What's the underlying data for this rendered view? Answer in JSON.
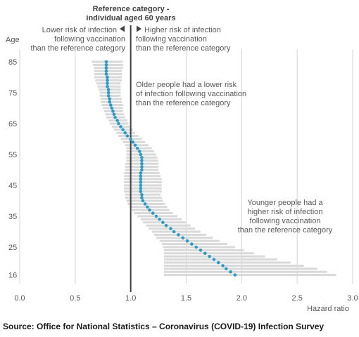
{
  "chart_data": {
    "type": "scatter",
    "ylabel": "Age",
    "xlabel": "Hazard ratio",
    "xlim": [
      0,
      3.0
    ],
    "x_ticks": [
      "0.0",
      "0.5",
      "1.0",
      "1.5",
      "2.0",
      "2.5",
      "3.0"
    ],
    "y_ticks": [
      "85",
      "75",
      "65",
      "55",
      "45",
      "35",
      "25",
      "16"
    ],
    "reference_line": {
      "x": 1.0,
      "label_line1": "Reference category -",
      "label_line2": "individual aged 60 years"
    },
    "left_label": [
      "Lower risk of infection",
      "following vaccination",
      "than the reference category"
    ],
    "right_label": [
      "Higher risk of infection",
      "following vaccination",
      "than the reference category"
    ],
    "annotations": [
      {
        "lines": [
          "Older people had a lower risk",
          "of infection following vaccination",
          "than the reference category"
        ]
      },
      {
        "lines": [
          "Younger people had a",
          "higher risk of infection",
          "following vaccination",
          "than the reference category"
        ]
      }
    ],
    "series": [
      {
        "color_point": "#2e9ac8",
        "color_ci": "#d9d9d9",
        "points": [
          {
            "age": 85,
            "hr": 0.78,
            "lo": 0.65,
            "hi": 0.93
          },
          {
            "age": 84,
            "hr": 0.78,
            "lo": 0.66,
            "hi": 0.93
          },
          {
            "age": 83,
            "hr": 0.78,
            "lo": 0.67,
            "hi": 0.93
          },
          {
            "age": 82,
            "hr": 0.78,
            "lo": 0.67,
            "hi": 0.92
          },
          {
            "age": 81,
            "hr": 0.78,
            "lo": 0.67,
            "hi": 0.92
          },
          {
            "age": 80,
            "hr": 0.79,
            "lo": 0.67,
            "hi": 0.92
          },
          {
            "age": 79,
            "hr": 0.79,
            "lo": 0.68,
            "hi": 0.92
          },
          {
            "age": 78,
            "hr": 0.79,
            "lo": 0.69,
            "hi": 0.91
          },
          {
            "age": 77,
            "hr": 0.79,
            "lo": 0.7,
            "hi": 0.91
          },
          {
            "age": 76,
            "hr": 0.8,
            "lo": 0.71,
            "hi": 0.91
          },
          {
            "age": 75,
            "hr": 0.8,
            "lo": 0.72,
            "hi": 0.91
          },
          {
            "age": 74,
            "hr": 0.8,
            "lo": 0.72,
            "hi": 0.91
          },
          {
            "age": 73,
            "hr": 0.81,
            "lo": 0.73,
            "hi": 0.92
          },
          {
            "age": 72,
            "hr": 0.81,
            "lo": 0.73,
            "hi": 0.92
          },
          {
            "age": 71,
            "hr": 0.82,
            "lo": 0.74,
            "hi": 0.93
          },
          {
            "age": 70,
            "hr": 0.83,
            "lo": 0.75,
            "hi": 0.93
          },
          {
            "age": 69,
            "hr": 0.84,
            "lo": 0.76,
            "hi": 0.93
          },
          {
            "age": 68,
            "hr": 0.85,
            "lo": 0.77,
            "hi": 0.94
          },
          {
            "age": 67,
            "hr": 0.86,
            "lo": 0.78,
            "hi": 0.95
          },
          {
            "age": 66,
            "hr": 0.88,
            "lo": 0.8,
            "hi": 0.97
          },
          {
            "age": 65,
            "hr": 0.89,
            "lo": 0.81,
            "hi": 0.98
          },
          {
            "age": 64,
            "hr": 0.91,
            "lo": 0.83,
            "hi": 1.0
          },
          {
            "age": 63,
            "hr": 0.93,
            "lo": 0.85,
            "hi": 1.02
          },
          {
            "age": 62,
            "hr": 0.95,
            "lo": 0.87,
            "hi": 1.04
          },
          {
            "age": 61,
            "hr": 0.97,
            "lo": 0.89,
            "hi": 1.07
          },
          {
            "age": 60,
            "hr": 1.0,
            "lo": 0.91,
            "hi": 1.1
          },
          {
            "age": 59,
            "hr": 1.02,
            "lo": 0.93,
            "hi": 1.13
          },
          {
            "age": 58,
            "hr": 1.04,
            "lo": 0.95,
            "hi": 1.16
          },
          {
            "age": 57,
            "hr": 1.06,
            "lo": 0.96,
            "hi": 1.19
          },
          {
            "age": 56,
            "hr": 1.08,
            "lo": 0.96,
            "hi": 1.21
          },
          {
            "age": 55,
            "hr": 1.09,
            "lo": 0.96,
            "hi": 1.23
          },
          {
            "age": 54,
            "hr": 1.1,
            "lo": 0.96,
            "hi": 1.24
          },
          {
            "age": 53,
            "hr": 1.1,
            "lo": 0.96,
            "hi": 1.25
          },
          {
            "age": 52,
            "hr": 1.1,
            "lo": 0.95,
            "hi": 1.25
          },
          {
            "age": 51,
            "hr": 1.1,
            "lo": 0.95,
            "hi": 1.25
          },
          {
            "age": 50,
            "hr": 1.1,
            "lo": 0.95,
            "hi": 1.25
          },
          {
            "age": 49,
            "hr": 1.09,
            "lo": 0.94,
            "hi": 1.26
          },
          {
            "age": 48,
            "hr": 1.09,
            "lo": 0.94,
            "hi": 1.27
          },
          {
            "age": 47,
            "hr": 1.09,
            "lo": 0.94,
            "hi": 1.28
          },
          {
            "age": 46,
            "hr": 1.09,
            "lo": 0.94,
            "hi": 1.28
          },
          {
            "age": 45,
            "hr": 1.09,
            "lo": 0.94,
            "hi": 1.28
          },
          {
            "age": 44,
            "hr": 1.09,
            "lo": 0.94,
            "hi": 1.28
          },
          {
            "age": 43,
            "hr": 1.09,
            "lo": 0.94,
            "hi": 1.28
          },
          {
            "age": 42,
            "hr": 1.1,
            "lo": 0.95,
            "hi": 1.27
          },
          {
            "age": 41,
            "hr": 1.1,
            "lo": 0.95,
            "hi": 1.28
          },
          {
            "age": 40,
            "hr": 1.11,
            "lo": 0.96,
            "hi": 1.29
          },
          {
            "age": 39,
            "hr": 1.13,
            "lo": 0.97,
            "hi": 1.31
          },
          {
            "age": 38,
            "hr": 1.15,
            "lo": 0.99,
            "hi": 1.33
          },
          {
            "age": 37,
            "hr": 1.17,
            "lo": 1.01,
            "hi": 1.35
          },
          {
            "age": 36,
            "hr": 1.2,
            "lo": 1.03,
            "hi": 1.38
          },
          {
            "age": 35,
            "hr": 1.23,
            "lo": 1.06,
            "hi": 1.42
          },
          {
            "age": 34,
            "hr": 1.26,
            "lo": 1.09,
            "hi": 1.46
          },
          {
            "age": 33,
            "hr": 1.29,
            "lo": 1.11,
            "hi": 1.5
          },
          {
            "age": 32,
            "hr": 1.32,
            "lo": 1.14,
            "hi": 1.54
          },
          {
            "age": 31,
            "hr": 1.36,
            "lo": 1.16,
            "hi": 1.58
          },
          {
            "age": 30,
            "hr": 1.39,
            "lo": 1.19,
            "hi": 1.63
          },
          {
            "age": 29,
            "hr": 1.43,
            "lo": 1.21,
            "hi": 1.68
          },
          {
            "age": 28,
            "hr": 1.47,
            "lo": 1.23,
            "hi": 1.74
          },
          {
            "age": 27,
            "hr": 1.51,
            "lo": 1.26,
            "hi": 1.8
          },
          {
            "age": 26,
            "hr": 1.55,
            "lo": 1.28,
            "hi": 1.87
          },
          {
            "age": 25,
            "hr": 1.59,
            "lo": 1.29,
            "hi": 1.94
          },
          {
            "age": 24,
            "hr": 1.63,
            "lo": 1.3,
            "hi": 2.02
          },
          {
            "age": 23,
            "hr": 1.67,
            "lo": 1.3,
            "hi": 2.11
          },
          {
            "age": 22,
            "hr": 1.71,
            "lo": 1.3,
            "hi": 2.21
          },
          {
            "age": 21,
            "hr": 1.75,
            "lo": 1.3,
            "hi": 2.32
          },
          {
            "age": 20,
            "hr": 1.79,
            "lo": 1.3,
            "hi": 2.44
          },
          {
            "age": 19,
            "hr": 1.83,
            "lo": 1.3,
            "hi": 2.56
          },
          {
            "age": 18,
            "hr": 1.86,
            "lo": 1.3,
            "hi": 2.68
          },
          {
            "age": 17,
            "hr": 1.9,
            "lo": 1.3,
            "hi": 2.77
          },
          {
            "age": 16,
            "hr": 1.94,
            "lo": 1.3,
            "hi": 2.85
          }
        ]
      }
    ]
  },
  "source": "Source: Office for National Statistics – Coronavirus (COVID-19) Infection Survey"
}
